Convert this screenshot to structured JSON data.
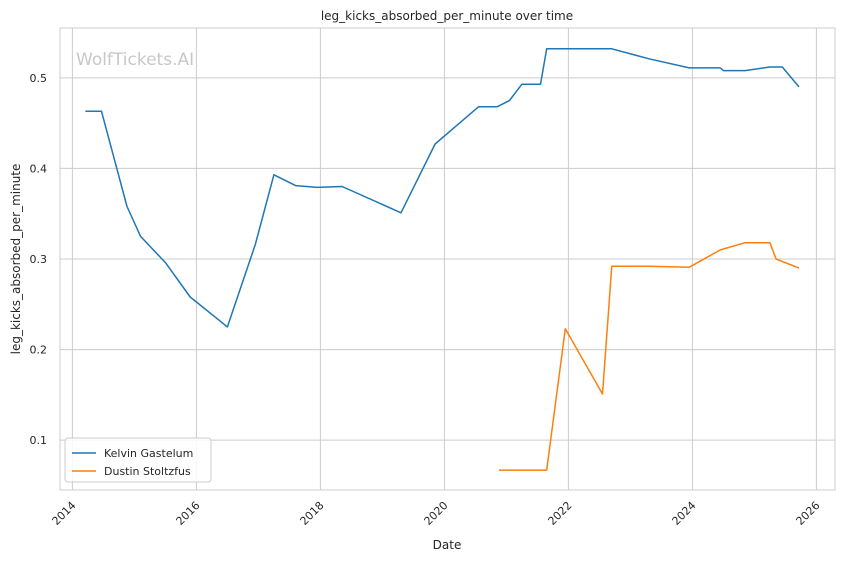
{
  "watermark": "WolfTickets.AI",
  "chart_data": {
    "type": "line",
    "title": "leg_kicks_absorbed_per_minute over time",
    "xlabel": "Date",
    "ylabel": "leg_kicks_absorbed_per_minute",
    "xlim": [
      2013.8,
      2026.3
    ],
    "ylim": [
      0.045,
      0.555
    ],
    "x_ticks": [
      2014,
      2016,
      2018,
      2020,
      2022,
      2024,
      2026
    ],
    "x_tick_labels": [
      "2014",
      "2016",
      "2018",
      "2020",
      "2022",
      "2024",
      "2026"
    ],
    "y_ticks": [
      0.1,
      0.2,
      0.3,
      0.4,
      0.5
    ],
    "y_tick_labels": [
      "0.1",
      "0.2",
      "0.3",
      "0.4",
      "0.5"
    ],
    "grid": true,
    "legend_position": "lower-left",
    "series": [
      {
        "name": "Kelvin Gastelum",
        "color": "#1f77b4",
        "x": [
          2014.21,
          2014.47,
          2014.88,
          2015.1,
          2015.5,
          2015.9,
          2016.5,
          2016.95,
          2017.25,
          2017.6,
          2017.95,
          2018.35,
          2019.3,
          2019.85,
          2020.55,
          2020.85,
          2021.05,
          2021.25,
          2021.55,
          2021.65,
          2022.7,
          2023.3,
          2023.95,
          2024.45,
          2024.5,
          2024.85,
          2025.25,
          2025.45,
          2025.72
        ],
        "y": [
          0.463,
          0.463,
          0.358,
          0.325,
          0.296,
          0.258,
          0.225,
          0.316,
          0.393,
          0.381,
          0.379,
          0.38,
          0.351,
          0.427,
          0.468,
          0.468,
          0.475,
          0.493,
          0.493,
          0.532,
          0.532,
          0.521,
          0.511,
          0.511,
          0.508,
          0.508,
          0.512,
          0.512,
          0.49
        ]
      },
      {
        "name": "Dustin Stoltzfus",
        "color": "#ff7f0e",
        "x": [
          2020.88,
          2021.65,
          2021.95,
          2022.55,
          2022.7,
          2023.3,
          2023.95,
          2024.45,
          2024.85,
          2025.25,
          2025.35,
          2025.72
        ],
        "y": [
          0.067,
          0.067,
          0.223,
          0.151,
          0.292,
          0.292,
          0.291,
          0.31,
          0.318,
          0.318,
          0.3,
          0.29
        ]
      }
    ]
  }
}
